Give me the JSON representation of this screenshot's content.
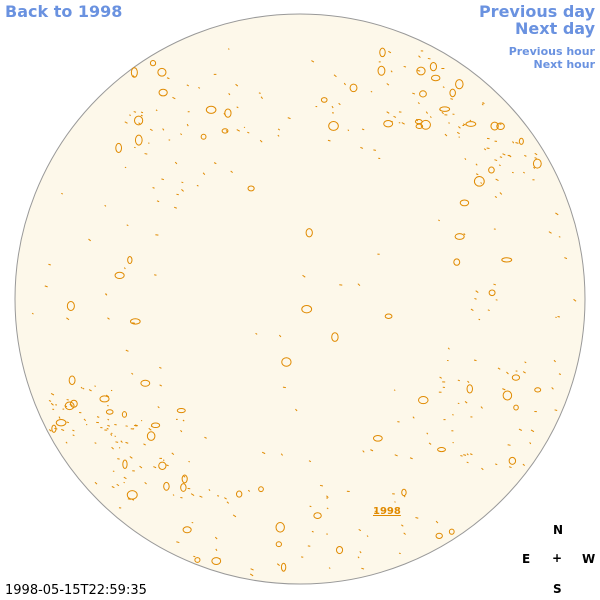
{
  "nav": {
    "back_label": "Back to 1998",
    "previous_day_label": "Previous day",
    "next_day_label": "Next day",
    "previous_hour_label": "Previous hour",
    "next_hour_label": "Next hour"
  },
  "map": {
    "disk_fill": "#fdf8ea",
    "disk_stroke": "#999999",
    "contour_color": "#e08a00",
    "year_link_label": "1998"
  },
  "compass": {
    "n": "N",
    "e": "E",
    "center": "+",
    "w": "W",
    "s": "S"
  },
  "timestamp": "1998-05-15T22:59:35",
  "colors": {
    "link": "#6a92e0",
    "contour": "#e08a00"
  }
}
